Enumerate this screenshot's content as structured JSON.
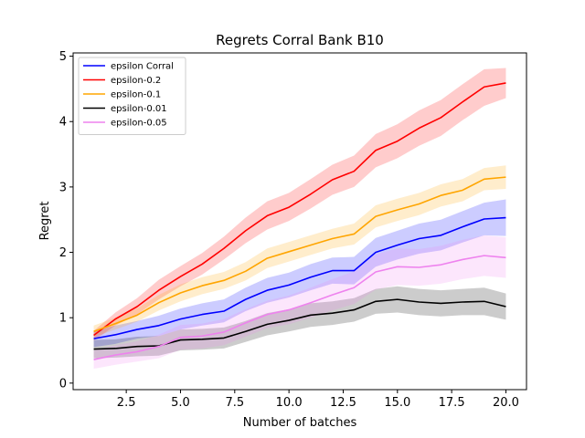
{
  "chart_data": {
    "type": "line",
    "title": "Regrets Corral Bank B10",
    "xlabel": "Number of batches",
    "ylabel": "Regret",
    "xlim": [
      0.05,
      20.95
    ],
    "ylim": [
      -0.1,
      5.05
    ],
    "xticks": [
      2.5,
      5.0,
      7.5,
      10.0,
      12.5,
      15.0,
      17.5,
      20.0
    ],
    "xtick_labels": [
      "2.5",
      "5.0",
      "7.5",
      "10.0",
      "12.5",
      "15.0",
      "17.5",
      "20.0"
    ],
    "yticks": [
      0,
      1,
      2,
      3,
      4,
      5
    ],
    "ytick_labels": [
      "0",
      "1",
      "2",
      "3",
      "4",
      "5"
    ],
    "grid": false,
    "legend_position": "top-left",
    "x": [
      1,
      2,
      3,
      4,
      5,
      6,
      7,
      8,
      9,
      10,
      11,
      12,
      13,
      14,
      15,
      16,
      17,
      18,
      19,
      20
    ],
    "series": [
      {
        "name": "epsilon Corral",
        "color": "#0000ff",
        "values": [
          0.68,
          0.74,
          0.82,
          0.88,
          0.98,
          1.05,
          1.1,
          1.28,
          1.42,
          1.5,
          1.62,
          1.72,
          1.72,
          2.0,
          2.11,
          2.21,
          2.26,
          2.39,
          2.51,
          2.53
        ],
        "lower": [
          0.55,
          0.6,
          0.68,
          0.72,
          0.82,
          0.88,
          0.93,
          1.1,
          1.23,
          1.31,
          1.42,
          1.52,
          1.51,
          1.78,
          1.89,
          1.98,
          2.03,
          2.15,
          2.26,
          2.25
        ],
        "upper": [
          0.8,
          0.88,
          0.95,
          1.03,
          1.14,
          1.22,
          1.28,
          1.46,
          1.61,
          1.69,
          1.82,
          1.92,
          1.93,
          2.22,
          2.33,
          2.44,
          2.5,
          2.63,
          2.76,
          2.81
        ]
      },
      {
        "name": "epsilon-0.2",
        "color": "#ff0000",
        "values": [
          0.73,
          0.98,
          1.17,
          1.42,
          1.63,
          1.82,
          2.06,
          2.33,
          2.56,
          2.69,
          2.89,
          3.11,
          3.24,
          3.56,
          3.7,
          3.9,
          4.06,
          4.3,
          4.53,
          4.59
        ],
        "lower": [
          0.65,
          0.88,
          1.05,
          1.28,
          1.48,
          1.66,
          1.89,
          2.14,
          2.35,
          2.48,
          2.67,
          2.88,
          3.0,
          3.3,
          3.44,
          3.63,
          3.78,
          4.02,
          4.24,
          4.36
        ],
        "upper": [
          0.8,
          1.08,
          1.3,
          1.58,
          1.79,
          1.99,
          2.24,
          2.53,
          2.78,
          2.91,
          3.12,
          3.34,
          3.48,
          3.81,
          3.96,
          4.17,
          4.33,
          4.57,
          4.8,
          4.82
        ]
      },
      {
        "name": "epsilon-0.1",
        "color": "#ffa500",
        "values": [
          0.79,
          0.91,
          1.04,
          1.23,
          1.38,
          1.49,
          1.57,
          1.71,
          1.91,
          2.01,
          2.11,
          2.21,
          2.28,
          2.55,
          2.65,
          2.74,
          2.87,
          2.95,
          3.12,
          3.15
        ],
        "lower": [
          0.7,
          0.82,
          0.94,
          1.11,
          1.25,
          1.36,
          1.44,
          1.57,
          1.76,
          1.86,
          1.96,
          2.06,
          2.12,
          2.38,
          2.48,
          2.57,
          2.7,
          2.78,
          2.95,
          2.97
        ],
        "upper": [
          0.88,
          1.0,
          1.14,
          1.35,
          1.51,
          1.62,
          1.7,
          1.85,
          2.06,
          2.16,
          2.26,
          2.36,
          2.44,
          2.72,
          2.82,
          2.91,
          3.04,
          3.12,
          3.29,
          3.33
        ]
      },
      {
        "name": "epsilon-0.01",
        "color": "#000000",
        "values": [
          0.52,
          0.53,
          0.56,
          0.57,
          0.66,
          0.67,
          0.69,
          0.79,
          0.9,
          0.96,
          1.04,
          1.07,
          1.12,
          1.25,
          1.28,
          1.24,
          1.22,
          1.24,
          1.25,
          1.17
        ],
        "lower": [
          0.38,
          0.39,
          0.41,
          0.42,
          0.5,
          0.51,
          0.53,
          0.63,
          0.73,
          0.79,
          0.86,
          0.89,
          0.94,
          1.06,
          1.08,
          1.04,
          1.02,
          1.04,
          1.04,
          0.97
        ],
        "upper": [
          0.66,
          0.67,
          0.71,
          0.72,
          0.82,
          0.83,
          0.85,
          0.95,
          1.07,
          1.13,
          1.22,
          1.25,
          1.3,
          1.44,
          1.48,
          1.44,
          1.42,
          1.44,
          1.46,
          1.37
        ]
      },
      {
        "name": "epsilon-0.05",
        "color": "#ee82ee",
        "values": [
          0.36,
          0.43,
          0.48,
          0.56,
          0.7,
          0.72,
          0.78,
          0.92,
          1.05,
          1.12,
          1.23,
          1.35,
          1.46,
          1.7,
          1.78,
          1.77,
          1.81,
          1.89,
          1.95,
          1.92
        ],
        "lower": [
          0.22,
          0.28,
          0.33,
          0.38,
          0.51,
          0.53,
          0.58,
          0.71,
          0.84,
          0.9,
          1.0,
          1.11,
          1.21,
          1.43,
          1.5,
          1.49,
          1.52,
          1.59,
          1.64,
          1.61
        ],
        "upper": [
          0.5,
          0.58,
          0.64,
          0.74,
          0.89,
          0.91,
          0.98,
          1.13,
          1.26,
          1.34,
          1.46,
          1.59,
          1.71,
          1.97,
          2.06,
          2.05,
          2.1,
          2.19,
          2.26,
          2.23
        ]
      }
    ]
  }
}
